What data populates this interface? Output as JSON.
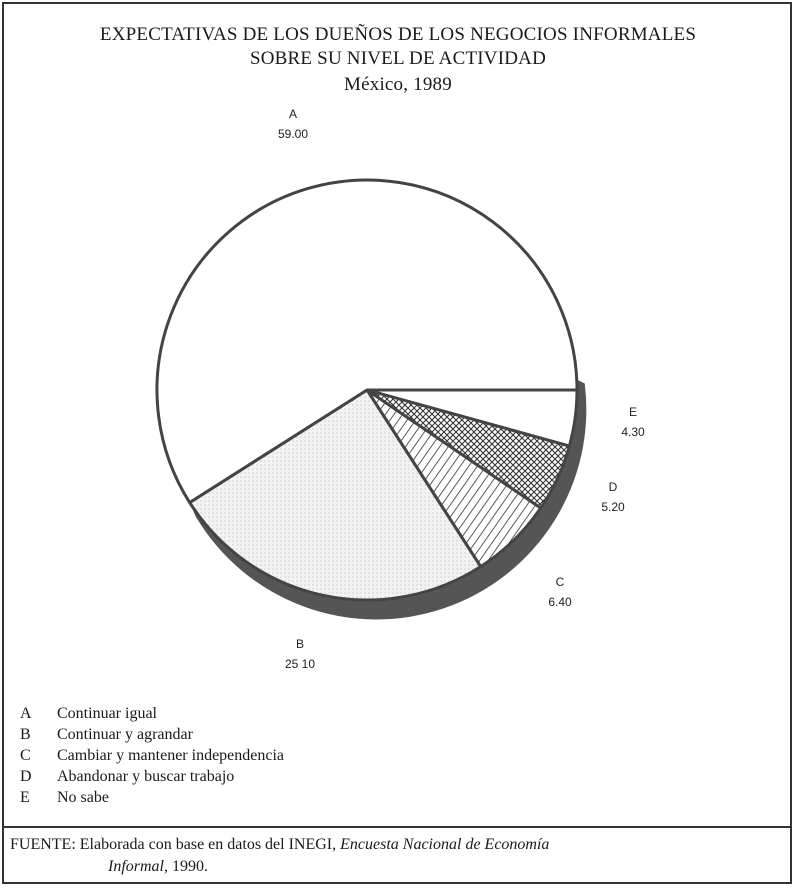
{
  "chart_data": {
    "type": "pie",
    "title": "EXPECTATIVAS DE LOS DUEÑOS DE LOS NEGOCIOS INFORMALES",
    "title_line2": "SOBRE SU NIVEL DE ACTIVIDAD",
    "subtitle": "México, 1989",
    "slices": [
      {
        "key": "A",
        "value": 59.0,
        "label": "59.00",
        "fill": "#ffffff"
      },
      {
        "key": "B",
        "value": 25.1,
        "label": "25 10",
        "fill": "#f0f0f0"
      },
      {
        "key": "C",
        "value": 6.4,
        "label": "6.40",
        "fill": "diagonal-hatch"
      },
      {
        "key": "D",
        "value": 5.2,
        "label": "5.20",
        "fill": "crosshatch"
      },
      {
        "key": "E",
        "value": 4.3,
        "label": "4.30",
        "fill": "#ffffff"
      }
    ],
    "edge_color": "#555555"
  },
  "legend": [
    {
      "key": "A",
      "text": "Continuar igual"
    },
    {
      "key": "B",
      "text": "Continuar y agrandar"
    },
    {
      "key": "C",
      "text": "Cambiar y mantener independencia"
    },
    {
      "key": "D",
      "text": "Abandonar y buscar trabajo"
    },
    {
      "key": "E",
      "text": "No sabe"
    }
  ],
  "source": {
    "prefix": "FUENTE:",
    "text": "Elaborada con base en datos del INEGI,",
    "publication": "Encuesta Nacional de Economía Informal",
    "year": ", 1990."
  }
}
